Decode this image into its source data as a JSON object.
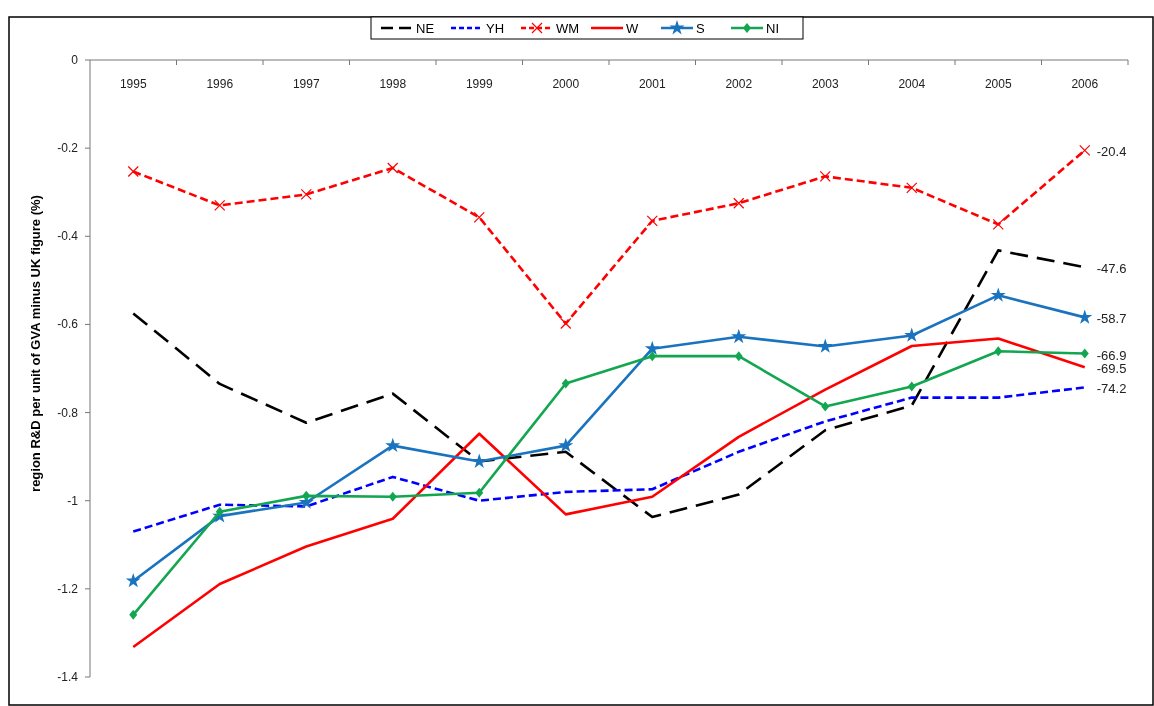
{
  "chart_data": {
    "type": "line",
    "ylabel": "region R&D per unit of GVA minus UK figure (%)",
    "categories": [
      "1995",
      "1996",
      "1997",
      "1998",
      "1999",
      "2000",
      "2001",
      "2002",
      "2003",
      "2004",
      "2005",
      "2006"
    ],
    "series": [
      {
        "name": "NE",
        "color": "#000000",
        "line_style": "dashed",
        "marker": "none",
        "values": [
          -0.575,
          -0.735,
          -0.823,
          -0.757,
          -0.911,
          -0.889,
          -1.037,
          -0.986,
          -0.84,
          -0.784,
          -0.432,
          -0.47
        ]
      },
      {
        "name": "YH",
        "color": "#0000ff",
        "line_style": "dashed",
        "marker": "none",
        "values": [
          -1.07,
          -1.009,
          -1.013,
          -0.946,
          -1.0,
          -0.98,
          -0.974,
          -0.889,
          -0.82,
          -0.766,
          -0.766,
          -0.743
        ]
      },
      {
        "name": "WM",
        "color": "#ff0000",
        "line_style": "dashed",
        "marker": "cross",
        "values": [
          -0.253,
          -0.33,
          -0.305,
          -0.245,
          -0.357,
          -0.598,
          -0.365,
          -0.325,
          -0.264,
          -0.29,
          -0.373,
          -0.205
        ]
      },
      {
        "name": "W",
        "color": "#ff0000",
        "line_style": "solid",
        "marker": "none",
        "values": [
          -1.332,
          -1.189,
          -1.104,
          -1.041,
          -0.848,
          -1.031,
          -0.991,
          -0.855,
          -0.748,
          -0.649,
          -0.632,
          -0.697
        ]
      },
      {
        "name": "S",
        "color": "#1a73bf",
        "line_style": "solid",
        "marker": "star",
        "values": [
          -1.182,
          -1.035,
          -1.004,
          -0.875,
          -0.911,
          -0.875,
          -0.655,
          -0.628,
          -0.65,
          -0.625,
          -0.534,
          -0.584
        ]
      },
      {
        "name": "NI",
        "color": "#12a650",
        "line_style": "solid",
        "marker": "diamond",
        "values": [
          -1.259,
          -1.025,
          -0.989,
          -0.991,
          -0.982,
          -0.734,
          -0.672,
          -0.672,
          -0.786,
          -0.741,
          -0.661,
          -0.666
        ]
      }
    ],
    "ylim": [
      -1.4,
      0
    ],
    "yticks": [
      0,
      -0.2,
      -0.4,
      -0.6,
      -0.8,
      -1,
      -1.2,
      -1.4
    ],
    "legend": "top",
    "annotations": [
      {
        "text": "-20.4",
        "x": "2006",
        "y": -0.205
      },
      {
        "text": "-47.6",
        "x": "2006",
        "y": -0.47
      },
      {
        "text": "-58.7",
        "x": "2006",
        "y": -0.584
      },
      {
        "text": "-66.9",
        "x": "2006",
        "y": -0.666
      },
      {
        "text": "-69.5",
        "x": "2006",
        "y": -0.697
      },
      {
        "text": "-74.2",
        "x": "2006",
        "y": -0.743
      }
    ]
  }
}
